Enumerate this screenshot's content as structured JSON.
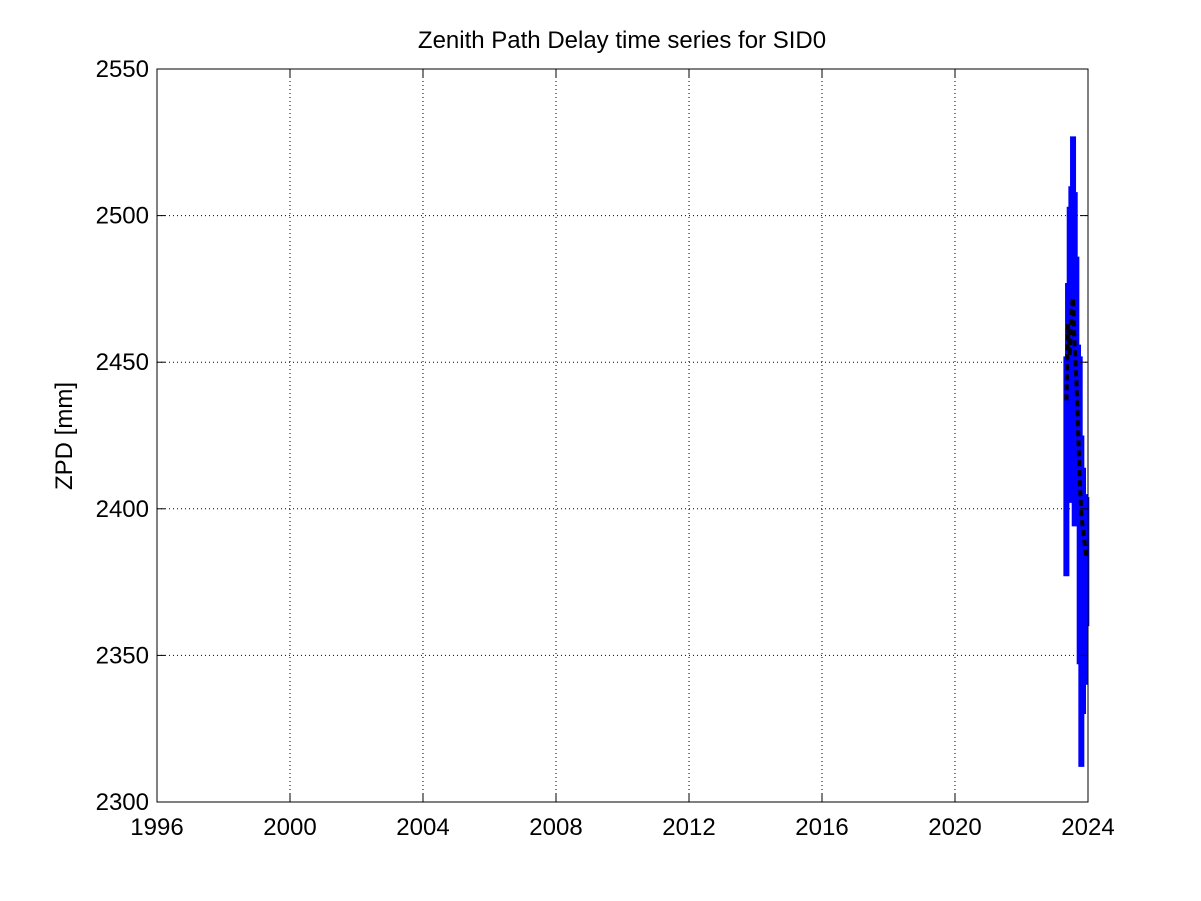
{
  "chart_data": {
    "type": "line",
    "title": "Zenith Path Delay time series for SID0",
    "xlabel": "",
    "ylabel": "ZPD [mm]",
    "xlim": [
      1996,
      2024
    ],
    "ylim": [
      2300,
      2550
    ],
    "x_ticks": [
      "1996",
      "2000",
      "2004",
      "2008",
      "2012",
      "2016",
      "2020",
      "2024"
    ],
    "y_ticks": [
      "2300",
      "2350",
      "2400",
      "2450",
      "2500",
      "2550"
    ],
    "grid": true,
    "series": [
      {
        "kind": "daily-range",
        "color": "#0000ff",
        "x": [
          2023.35,
          2023.4,
          2023.45,
          2023.5,
          2023.55,
          2023.6,
          2023.65,
          2023.7,
          2023.75,
          2023.8,
          2023.85,
          2023.9,
          2023.95
        ],
        "low": [
          2377,
          2437,
          2402,
          2412,
          2407,
          2394,
          2398,
          2396,
          2347,
          2312,
          2330,
          2340,
          2360
        ],
        "high": [
          2452,
          2477,
          2503,
          2510,
          2527,
          2508,
          2486,
          2456,
          2452,
          2425,
          2414,
          2405,
          2404
        ]
      },
      {
        "kind": "mean",
        "color": "#000000",
        "x": [
          2023.35,
          2023.4,
          2023.45,
          2023.5,
          2023.55,
          2023.6,
          2023.65,
          2023.7,
          2023.75,
          2023.8,
          2023.85,
          2023.9,
          2023.95
        ],
        "values": [
          2437,
          2463,
          2452,
          2468,
          2472,
          2455,
          2444,
          2428,
          2410,
          2398,
          2393,
          2388,
          2384
        ]
      }
    ]
  }
}
